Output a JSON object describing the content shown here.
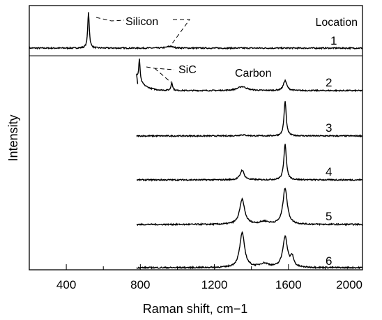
{
  "chart_data": {
    "type": "line",
    "xlabel": "Raman shift, cm−1",
    "ylabel": "Intensity",
    "xlim": [
      200,
      2000
    ],
    "x_ticks": [
      400,
      800,
      1200,
      1600,
      2000
    ],
    "x_tick_labels": [
      "400",
      "800",
      "1200",
      "1600",
      "2000"
    ],
    "y_ticks_visible": false,
    "grid": false,
    "legend_header": "Location",
    "annotations": {
      "silicon": "Silicon",
      "sic": "SiC",
      "carbon": "Carbon"
    },
    "series": [
      {
        "name": "1",
        "x_range": [
          200,
          2000
        ],
        "peaks": [
          {
            "x": 520,
            "height": 1.0,
            "width": 10
          },
          {
            "x": 960,
            "height": 0.05,
            "width": 40
          }
        ]
      },
      {
        "name": "2",
        "x_range": [
          780,
          2000
        ],
        "start_spike": true,
        "peaks": [
          {
            "x": 795,
            "height": 0.65,
            "width": 8
          },
          {
            "x": 970,
            "height": 0.25,
            "width": 10
          },
          {
            "x": 1350,
            "height": 0.12,
            "width": 60
          },
          {
            "x": 1582,
            "height": 0.3,
            "width": 22
          }
        ]
      },
      {
        "name": "3",
        "x_range": [
          780,
          2000
        ],
        "peaks": [
          {
            "x": 1350,
            "height": 0.03,
            "width": 50
          },
          {
            "x": 1582,
            "height": 1.0,
            "width": 14
          }
        ]
      },
      {
        "name": "4",
        "x_range": [
          780,
          2000
        ],
        "peaks": [
          {
            "x": 1350,
            "height": 0.27,
            "width": 25
          },
          {
            "x": 1582,
            "height": 1.0,
            "width": 16
          }
        ]
      },
      {
        "name": "5",
        "x_range": [
          780,
          2000
        ],
        "peaks": [
          {
            "x": 1350,
            "height": 0.65,
            "width": 32
          },
          {
            "x": 1582,
            "height": 0.95,
            "width": 28
          },
          {
            "x": 1470,
            "height": 0.07,
            "width": 60
          }
        ]
      },
      {
        "name": "6",
        "x_range": [
          780,
          2000
        ],
        "peaks": [
          {
            "x": 1350,
            "height": 0.9,
            "width": 32
          },
          {
            "x": 1582,
            "height": 0.8,
            "width": 30
          },
          {
            "x": 1470,
            "height": 0.1,
            "width": 60
          },
          {
            "x": 1620,
            "height": 0.25,
            "width": 20
          }
        ]
      }
    ]
  }
}
